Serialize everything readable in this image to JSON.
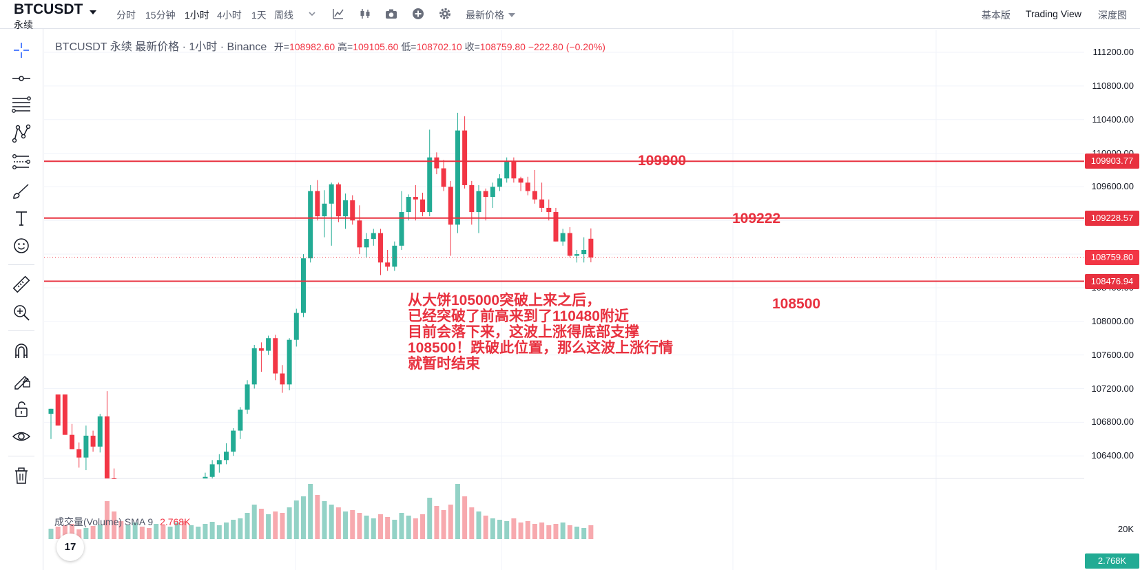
{
  "symbol": {
    "name": "BTCUSDT",
    "sub": "永续"
  },
  "timeframes": [
    {
      "label": "分时",
      "active": false
    },
    {
      "label": "15分钟",
      "active": false
    },
    {
      "label": "1小时",
      "active": true
    },
    {
      "label": "4小时",
      "active": false
    },
    {
      "label": "1天",
      "active": false
    },
    {
      "label": "周线",
      "active": false
    }
  ],
  "toolbar_icons": [
    "dropdown-caret-icon",
    "indicators-icon",
    "candles-icon",
    "camera-icon",
    "plus-icon",
    "gear-icon"
  ],
  "price_type": "最新价格",
  "views": [
    {
      "label": "基本版",
      "active": false
    },
    {
      "label": "Trading View",
      "active": true
    },
    {
      "label": "深度图",
      "active": false
    }
  ],
  "drawing_tools": [
    "crosshair-icon",
    "horizontal-line-icon",
    "fib-lines-icon",
    "pattern-icon",
    "prediction-icon",
    "brush-icon",
    "text-icon",
    "emoji-icon",
    "ruler-icon",
    "zoom-in-icon",
    "magnet-icon",
    "lock-drawing-icon",
    "unlock-icon",
    "eye-icon",
    "trash-icon"
  ],
  "legend": {
    "title": "BTCUSDT 永续 最新价格 · 1小时 · Binance",
    "open_label": "开=",
    "open": "108982.60",
    "high_label": "高=",
    "high": "109105.60",
    "low_label": "低=",
    "low": "108702.10",
    "close_label": "收=",
    "close": "108759.80",
    "change": "−222.80 (−0.20%)"
  },
  "volume_legend": {
    "label": "成交量(Volume)",
    "sma": "SMA 9",
    "value": "2.768K"
  },
  "annotation": "从大饼105000突破上来之后，\n已经突破了前高来到了110480附近\n目前会落下来，这波上涨得底部支撑\n108500！跌破此位置，那么这波上涨行情\n就暂时结束",
  "levels": [
    {
      "label": "109900",
      "price": 109903.77,
      "tag": "109903.77"
    },
    {
      "label": "109222",
      "price": 109228.57,
      "tag": "109228.57"
    },
    {
      "label": "108500",
      "price": 108476.94,
      "tag": "108476.94"
    }
  ],
  "last_price": {
    "price": 108759.8,
    "tag": "108759.80"
  },
  "volume_axis": {
    "tick": "20K",
    "tag": "2.768K"
  },
  "colors": {
    "up": "#22ab94",
    "down": "#f23645",
    "level": "#e8313f",
    "vol_up": "#93d2c6",
    "vol_down": "#f7a9ae"
  },
  "chart_data": {
    "type": "candlestick",
    "y_ticks": [
      111200,
      110800,
      110400,
      110000,
      109600,
      109200,
      108800,
      108400,
      108000,
      107600,
      107200,
      106800,
      106400
    ],
    "y_tick_labels": [
      "111200.00",
      "110800.00",
      "110400.00",
      "110000.00",
      "109600.00",
      "109200.00",
      "108800.00",
      "108400.00",
      "108000.00",
      "107600.00",
      "107200.00",
      "106800.00",
      "106400.00"
    ],
    "ylim": [
      106000,
      111400
    ],
    "candles": [
      [
        106900,
        106960,
        106600,
        106960
      ],
      [
        107130,
        107130,
        106760,
        106760
      ],
      [
        107130,
        107130,
        106650,
        106650
      ],
      [
        106650,
        106780,
        106480,
        106480
      ],
      [
        106480,
        106560,
        106260,
        106380
      ],
      [
        106380,
        106760,
        106230,
        106640
      ],
      [
        106640,
        106700,
        106450,
        106510
      ],
      [
        106510,
        106900,
        106440,
        106870
      ],
      [
        106870,
        107170,
        106100,
        106100
      ],
      [
        106100,
        106250,
        105900,
        106000
      ],
      [
        106000,
        106100,
        105850,
        105880
      ],
      [
        105880,
        106050,
        105800,
        105950
      ],
      [
        105950,
        106090,
        105880,
        106040
      ],
      [
        106040,
        106090,
        105900,
        105960
      ],
      [
        105960,
        106000,
        105800,
        105850
      ],
      [
        105850,
        105950,
        105750,
        105900
      ],
      [
        105900,
        105980,
        105800,
        105850
      ],
      [
        105850,
        105950,
        105750,
        105900
      ],
      [
        105900,
        106000,
        105800,
        105950
      ],
      [
        105950,
        106050,
        105850,
        105900
      ],
      [
        105900,
        106050,
        105850,
        106000
      ],
      [
        106000,
        106120,
        105900,
        106050
      ],
      [
        106050,
        106200,
        106000,
        106150
      ],
      [
        106150,
        106350,
        106050,
        106300
      ],
      [
        106300,
        106420,
        106200,
        106350
      ],
      [
        106350,
        106550,
        106300,
        106450
      ],
      [
        106450,
        106730,
        106400,
        106700
      ],
      [
        106700,
        106980,
        106600,
        106950
      ],
      [
        106950,
        107300,
        106900,
        107250
      ],
      [
        107250,
        107720,
        107200,
        107680
      ],
      [
        107680,
        107750,
        107400,
        107650
      ],
      [
        107650,
        107830,
        107600,
        107800
      ],
      [
        107800,
        107840,
        107300,
        107380
      ],
      [
        107380,
        107480,
        107150,
        107250
      ],
      [
        107250,
        107800,
        107180,
        107780
      ],
      [
        107780,
        108150,
        107700,
        108100
      ],
      [
        108100,
        108800,
        108050,
        108750
      ],
      [
        108750,
        109620,
        108700,
        109550
      ],
      [
        109550,
        109680,
        109200,
        109250
      ],
      [
        109250,
        109560,
        109000,
        109400
      ],
      [
        109400,
        109650,
        108900,
        109630
      ],
      [
        109630,
        109650,
        109180,
        109250
      ],
      [
        109250,
        109520,
        109100,
        109440
      ],
      [
        109440,
        109500,
        109150,
        109200
      ],
      [
        109200,
        109380,
        108800,
        108880
      ],
      [
        108880,
        109050,
        108760,
        108980
      ],
      [
        108980,
        109100,
        108900,
        109050
      ],
      [
        109050,
        109100,
        108550,
        108700
      ],
      [
        108700,
        108850,
        108600,
        108650
      ],
      [
        108650,
        108950,
        108600,
        108900
      ],
      [
        108900,
        109550,
        108850,
        109300
      ],
      [
        109300,
        109510,
        109200,
        109480
      ],
      [
        109480,
        109620,
        109200,
        109450
      ],
      [
        109450,
        109530,
        109250,
        109300
      ],
      [
        109300,
        110280,
        109250,
        109950
      ],
      [
        109950,
        110010,
        109750,
        109820
      ],
      [
        109820,
        109920,
        109550,
        109600
      ],
      [
        109600,
        109670,
        108780,
        109150
      ],
      [
        109150,
        110480,
        109050,
        110270
      ],
      [
        110270,
        110440,
        109580,
        109620
      ],
      [
        109620,
        109670,
        109150,
        109300
      ],
      [
        109300,
        109620,
        109050,
        109550
      ],
      [
        109550,
        109580,
        109200,
        109480
      ],
      [
        109480,
        109650,
        109350,
        109600
      ],
      [
        109600,
        109750,
        109550,
        109700
      ],
      [
        109700,
        109950,
        109650,
        109900
      ],
      [
        109900,
        109950,
        109650,
        109700
      ],
      [
        109700,
        109720,
        109550,
        109650
      ],
      [
        109650,
        109720,
        109500,
        109550
      ],
      [
        109550,
        109800,
        109400,
        109450
      ],
      [
        109450,
        109650,
        109300,
        109350
      ],
      [
        109350,
        109450,
        109200,
        109300
      ],
      [
        109300,
        109350,
        108950,
        108950
      ],
      [
        108950,
        109100,
        108900,
        109050
      ],
      [
        109050,
        109120,
        108760,
        108780
      ],
      [
        108780,
        108850,
        108700,
        108800
      ],
      [
        108800,
        109000,
        108700,
        108850
      ],
      [
        108982.6,
        109105.6,
        108702.1,
        108759.8
      ]
    ],
    "volume": [
      15,
      18,
      20,
      22,
      14,
      16,
      19,
      21,
      55,
      40,
      26,
      20,
      24,
      18,
      16,
      22,
      20,
      18,
      24,
      26,
      20,
      18,
      22,
      25,
      20,
      24,
      28,
      30,
      38,
      50,
      44,
      36,
      40,
      38,
      46,
      56,
      62,
      80,
      64,
      55,
      50,
      46,
      40,
      42,
      38,
      34,
      30,
      36,
      32,
      28,
      38,
      34,
      30,
      36,
      60,
      48,
      42,
      50,
      80,
      62,
      46,
      40,
      34,
      30,
      28,
      26,
      30,
      24,
      26,
      22,
      24,
      20,
      22,
      24,
      20,
      18,
      16,
      20
    ],
    "volume_max": 80
  }
}
